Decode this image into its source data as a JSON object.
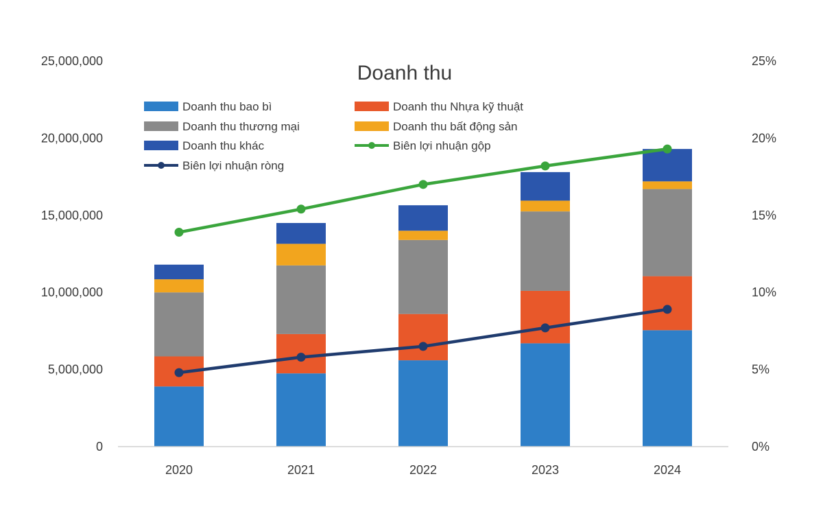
{
  "chart_data": {
    "type": "bar",
    "stacked": true,
    "title": "Doanh thu",
    "categories": [
      "2020",
      "2021",
      "2022",
      "2023",
      "2024"
    ],
    "y_left": {
      "lim": [
        0,
        25000000
      ],
      "ticks": [
        0,
        5000000,
        10000000,
        15000000,
        20000000,
        25000000
      ],
      "tick_labels": [
        "0",
        "5,000,000",
        "10,000,000",
        "15,000,000",
        "20,000,000",
        "25,000,000"
      ]
    },
    "y_right": {
      "lim": [
        0,
        25
      ],
      "ticks": [
        0,
        5,
        10,
        15,
        20,
        25
      ],
      "tick_labels": [
        "0%",
        "5%",
        "10%",
        "15%",
        "20%",
        "25%"
      ]
    },
    "grid": false,
    "legend_position": "top",
    "series": [
      {
        "name": "Doanh thu bao bì",
        "kind": "bar",
        "color": "#2e7fc8",
        "values": [
          3900000,
          4750000,
          5600000,
          6700000,
          7550000
        ]
      },
      {
        "name": "Doanh thu Nhựa kỹ thuật",
        "kind": "bar",
        "color": "#e8582a",
        "values": [
          1950000,
          2550000,
          3000000,
          3400000,
          3500000
        ]
      },
      {
        "name": "Doanh thu thương mại",
        "kind": "bar",
        "color": "#8a8a8a",
        "values": [
          4150000,
          4450000,
          4800000,
          5150000,
          5650000
        ]
      },
      {
        "name": "Doanh thu bất động sản",
        "kind": "bar",
        "color": "#f2a51e",
        "values": [
          850000,
          1400000,
          600000,
          700000,
          500000
        ]
      },
      {
        "name": "Doanh thu khác",
        "kind": "bar",
        "color": "#2b56ac",
        "values": [
          950000,
          1350000,
          1650000,
          1850000,
          2100000
        ]
      },
      {
        "name": "Biên lợi nhuận gộp",
        "kind": "line",
        "axis": "right",
        "color": "#3aa53c",
        "values": [
          13.9,
          15.4,
          17.0,
          18.2,
          19.3
        ]
      },
      {
        "name": "Biên lợi nhuận ròng",
        "kind": "line",
        "axis": "right",
        "color": "#1f3b6e",
        "values": [
          4.8,
          5.8,
          6.5,
          7.7,
          8.9
        ]
      }
    ],
    "legend_order": [
      0,
      1,
      2,
      3,
      4,
      5,
      6
    ]
  }
}
